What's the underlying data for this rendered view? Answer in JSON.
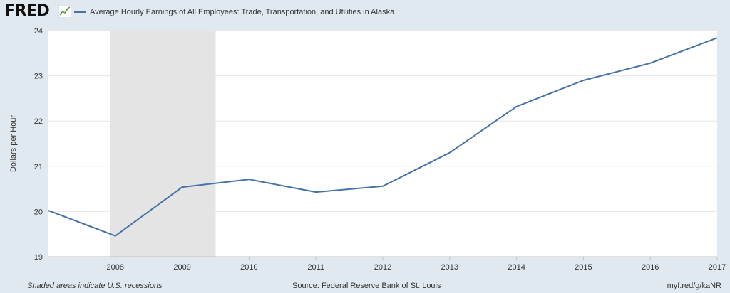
{
  "header": {
    "logo_text": "FRED",
    "logo_icon": "fred-trend-icon",
    "legend_label": "Average Hourly Earnings of All Employees: Trade, Transportation, and Utilities in Alaska",
    "legend_color": "#4572a7"
  },
  "footer": {
    "recession_note": "Shaded areas indicate U.S. recessions",
    "source": "Source: Federal Reserve Bank of St. Louis",
    "short_url": "myf.red/g/kaNR"
  },
  "chart_data": {
    "type": "line",
    "title": "",
    "xlabel": "",
    "ylabel": "Dollars per Hour",
    "ylim": [
      19,
      24
    ],
    "xlim": [
      2007,
      2017
    ],
    "y_ticks": [
      "19",
      "20",
      "21",
      "22",
      "23",
      "24"
    ],
    "x_ticks": [
      "2008",
      "2009",
      "2010",
      "2011",
      "2012",
      "2013",
      "2014",
      "2015",
      "2016",
      "2017"
    ],
    "grid": true,
    "series": [
      {
        "name": "Average Hourly Earnings of All Employees: Trade, Transportation, and Utilities in Alaska",
        "color": "#4572a7",
        "x": [
          2007,
          2008,
          2009,
          2010,
          2011,
          2012,
          2013,
          2014,
          2015,
          2016,
          2017
        ],
        "values": [
          20.02,
          19.46,
          20.54,
          20.71,
          20.43,
          20.56,
          21.3,
          22.32,
          22.9,
          23.28,
          23.84
        ]
      }
    ],
    "recessions": [
      {
        "start": 2007.92,
        "end": 2009.5
      }
    ],
    "recession_color": "#e4e4e4"
  }
}
